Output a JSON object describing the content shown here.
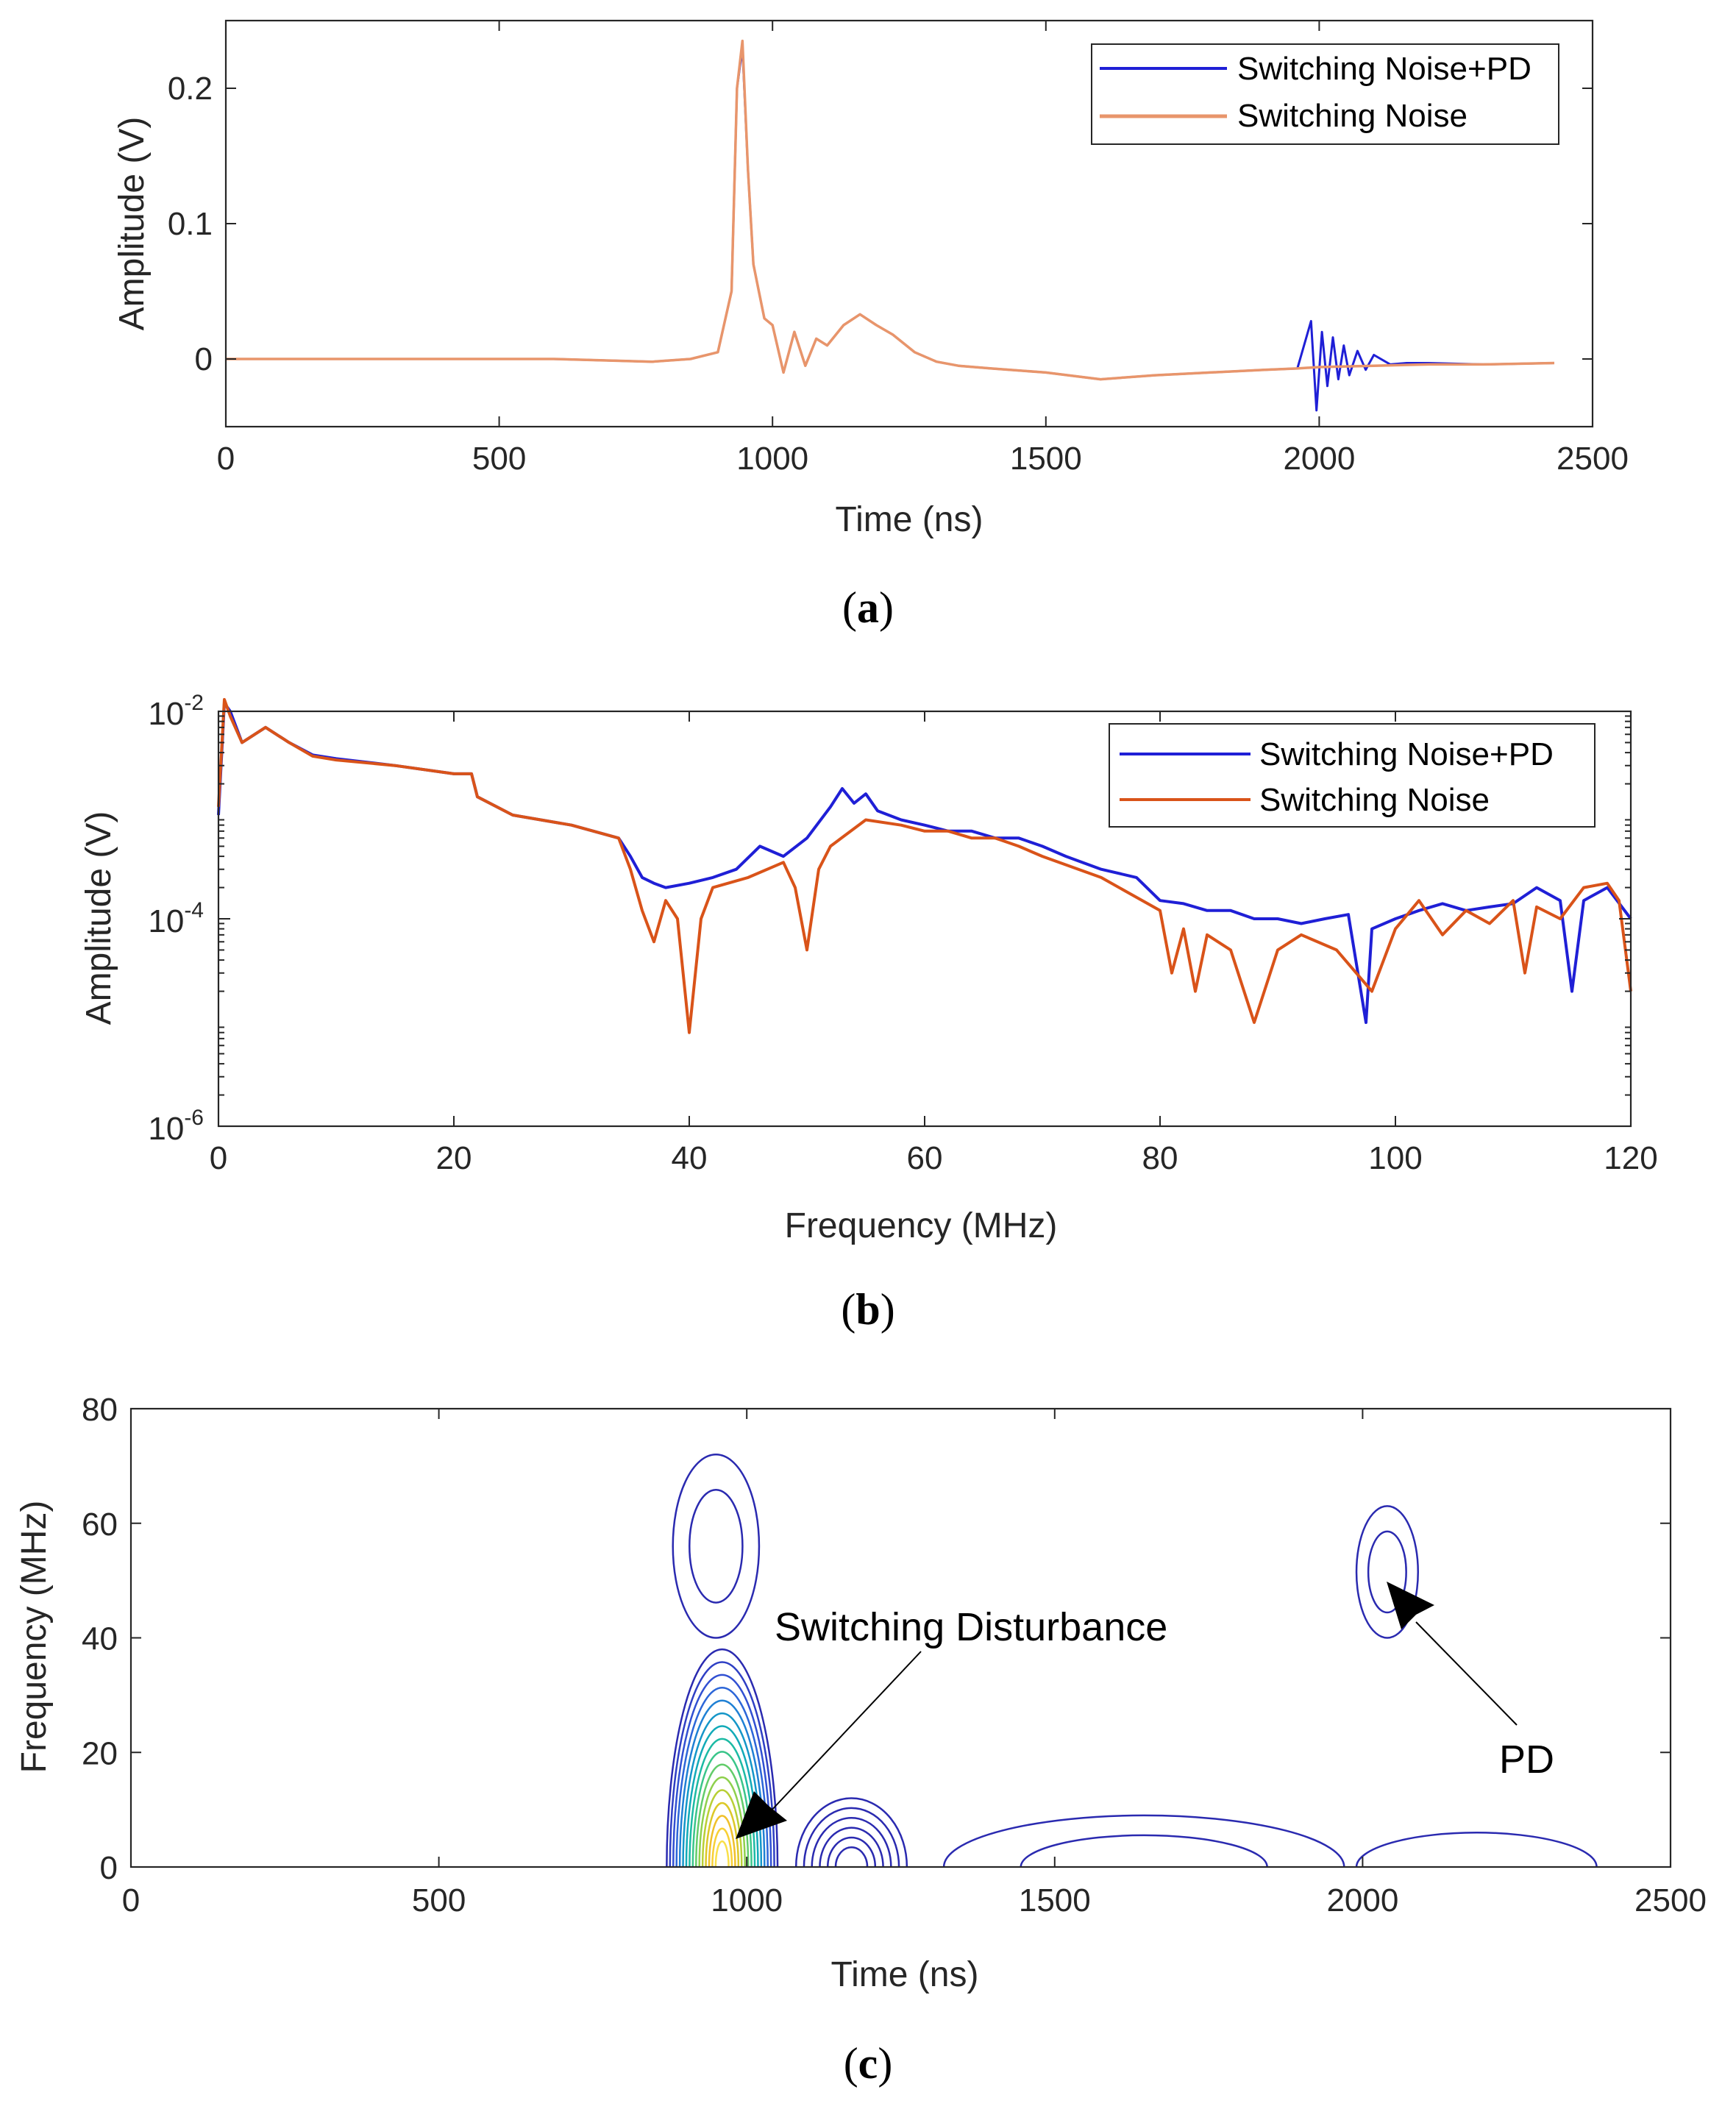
{
  "chart_data": [
    {
      "type": "line",
      "panel": "a",
      "xlabel": "Time (ns)",
      "ylabel": "Amplitude (V)",
      "xlim": [
        0,
        2500
      ],
      "ylim": [
        -0.05,
        0.25
      ],
      "xticks": [
        "0",
        "500",
        "1000",
        "1500",
        "2000",
        "2500"
      ],
      "yticks": [
        "0",
        "0.1",
        "0.2"
      ],
      "legend_position": "top-right",
      "series": [
        {
          "name": "Switching Noise+PD",
          "color": "#1f1fd6",
          "x": [
            0,
            200,
            400,
            600,
            780,
            850,
            900,
            925,
            935,
            945,
            955,
            965,
            975,
            985,
            1000,
            1020,
            1040,
            1060,
            1080,
            1100,
            1130,
            1160,
            1190,
            1220,
            1260,
            1300,
            1340,
            1400,
            1500,
            1600,
            1700,
            1800,
            1900,
            1960,
            1985,
            1995,
            2005,
            2015,
            2025,
            2035,
            2045,
            2055,
            2070,
            2085,
            2100,
            2130,
            2160,
            2200,
            2300,
            2430
          ],
          "y": [
            0,
            0,
            0,
            0,
            -0.002,
            0.0,
            0.005,
            0.05,
            0.2,
            0.23,
            0.14,
            0.07,
            0.05,
            0.03,
            0.025,
            -0.01,
            0.02,
            -0.005,
            0.015,
            0.01,
            0.025,
            0.033,
            0.025,
            0.018,
            0.005,
            -0.002,
            -0.005,
            -0.007,
            -0.01,
            -0.015,
            -0.012,
            -0.01,
            -0.008,
            -0.007,
            0.028,
            -0.038,
            0.02,
            -0.02,
            0.016,
            -0.015,
            0.01,
            -0.012,
            0.006,
            -0.008,
            0.003,
            -0.004,
            -0.003,
            -0.003,
            -0.004,
            -0.003
          ]
        },
        {
          "name": "Switching Noise",
          "color": "#e8956b",
          "x": [
            0,
            200,
            400,
            600,
            780,
            850,
            900,
            925,
            935,
            945,
            955,
            965,
            975,
            985,
            1000,
            1020,
            1040,
            1060,
            1080,
            1100,
            1130,
            1160,
            1190,
            1220,
            1260,
            1300,
            1340,
            1400,
            1500,
            1600,
            1700,
            1800,
            1900,
            1960,
            2000,
            2100,
            2200,
            2300,
            2430
          ],
          "y": [
            0,
            0,
            0,
            0,
            -0.002,
            0.0,
            0.005,
            0.05,
            0.2,
            0.235,
            0.14,
            0.07,
            0.05,
            0.03,
            0.025,
            -0.01,
            0.02,
            -0.005,
            0.015,
            0.01,
            0.025,
            0.033,
            0.025,
            0.018,
            0.005,
            -0.002,
            -0.005,
            -0.007,
            -0.01,
            -0.015,
            -0.012,
            -0.01,
            -0.008,
            -0.007,
            -0.006,
            -0.005,
            -0.004,
            -0.004,
            -0.003
          ]
        }
      ]
    },
    {
      "type": "line",
      "panel": "b",
      "xlabel": "Frequency (MHz)",
      "ylabel": "Amplitude (V)",
      "xlim": [
        0,
        120
      ],
      "ylim": [
        1e-06,
        0.01
      ],
      "yscale": "log",
      "xticks": [
        "0",
        "20",
        "40",
        "60",
        "80",
        "100",
        "120"
      ],
      "legend_position": "top-right",
      "series": [
        {
          "name": "Switching Noise+PD",
          "color": "#1f1fd6",
          "x": [
            0,
            0.5,
            1,
            2,
            4,
            6,
            8,
            10,
            15,
            20,
            21.5,
            22,
            25,
            30,
            34,
            35,
            36,
            37,
            38,
            40,
            42,
            44,
            46,
            48,
            50,
            52,
            53,
            54,
            55,
            56,
            58,
            60,
            62,
            64,
            66,
            68,
            70,
            72,
            75,
            78,
            80,
            82,
            84,
            86,
            88,
            90,
            92,
            94,
            96,
            97.5,
            98,
            100,
            102,
            104,
            106,
            108,
            110,
            112,
            114,
            115,
            116,
            118,
            120
          ],
          "y": [
            0.001,
            0.012,
            0.01,
            0.005,
            0.007,
            0.005,
            0.0038,
            0.0035,
            0.003,
            0.0025,
            0.0025,
            0.0015,
            0.001,
            0.0008,
            0.0006,
            0.0004,
            0.00025,
            0.00022,
            0.0002,
            0.00022,
            0.00025,
            0.0003,
            0.0005,
            0.0004,
            0.0006,
            0.0012,
            0.0018,
            0.0013,
            0.0016,
            0.0011,
            0.0009,
            0.0008,
            0.0007,
            0.0007,
            0.0006,
            0.0006,
            0.0005,
            0.0004,
            0.0003,
            0.00025,
            0.00015,
            0.00014,
            0.00012,
            0.00012,
            0.0001,
            0.0001,
            9e-05,
            0.0001,
            0.00011,
            1e-05,
            8e-05,
            0.0001,
            0.00012,
            0.00014,
            0.00012,
            0.00013,
            0.00014,
            0.0002,
            0.00015,
            2e-05,
            0.00015,
            0.0002,
            0.0001
          ]
        },
        {
          "name": "Switching Noise",
          "color": "#d95319",
          "x": [
            0,
            0.5,
            1,
            2,
            4,
            6,
            8,
            10,
            15,
            20,
            21.5,
            22,
            25,
            30,
            34,
            35,
            36,
            37,
            38,
            39,
            40,
            41,
            42,
            45,
            48,
            49,
            50,
            51,
            52,
            55,
            58,
            60,
            62,
            64,
            66,
            68,
            70,
            75,
            80,
            81,
            82,
            83,
            84,
            86,
            88,
            90,
            92,
            95,
            98,
            100,
            102,
            104,
            106,
            108,
            110,
            111,
            112,
            114,
            116,
            118,
            119,
            120
          ],
          "y": [
            0.0012,
            0.013,
            0.009,
            0.005,
            0.007,
            0.005,
            0.0037,
            0.0034,
            0.003,
            0.0025,
            0.0025,
            0.0015,
            0.001,
            0.0008,
            0.0006,
            0.0003,
            0.00012,
            6e-05,
            0.00015,
            0.0001,
            8e-06,
            0.0001,
            0.0002,
            0.00025,
            0.00035,
            0.0002,
            5e-05,
            0.0003,
            0.0005,
            0.0009,
            0.0008,
            0.0007,
            0.0007,
            0.0006,
            0.0006,
            0.0005,
            0.0004,
            0.00025,
            0.00012,
            3e-05,
            8e-05,
            2e-05,
            7e-05,
            5e-05,
            1e-05,
            5e-05,
            7e-05,
            5e-05,
            2e-05,
            8e-05,
            0.00015,
            7e-05,
            0.00012,
            9e-05,
            0.00015,
            3e-05,
            0.00013,
            0.0001,
            0.0002,
            0.00022,
            0.00015,
            2e-05
          ]
        }
      ]
    },
    {
      "type": "contour",
      "panel": "c",
      "xlabel": "Time (ns)",
      "ylabel": "Frequency (MHz)",
      "xlim": [
        0,
        2500
      ],
      "ylim": [
        0,
        80
      ],
      "xticks": [
        "0",
        "500",
        "1000",
        "1500",
        "2000",
        "2500"
      ],
      "yticks": [
        "0",
        "20",
        "40",
        "60",
        "80"
      ],
      "annotations": [
        {
          "text": "Switching Disturbance",
          "arrow_to": [
            950,
            5
          ]
        },
        {
          "text": "PD",
          "arrow_to": [
            2030,
            50
          ]
        }
      ],
      "contour_regions": [
        {
          "label": "switching-main",
          "t_range": [
            870,
            1050
          ],
          "f_range": [
            0,
            38
          ],
          "levels": 16
        },
        {
          "label": "switching-upper",
          "t_range": [
            880,
            1020
          ],
          "f_range": [
            40,
            72
          ],
          "levels": 2
        },
        {
          "label": "ringing-1150",
          "t_range": [
            1080,
            1260
          ],
          "f_range": [
            0,
            12
          ],
          "levels": 6
        },
        {
          "label": "tail-1",
          "t_range": [
            1320,
            1970
          ],
          "f_range": [
            0,
            9
          ],
          "levels": 2
        },
        {
          "label": "tail-2",
          "t_range": [
            1990,
            2380
          ],
          "f_range": [
            0,
            6
          ],
          "levels": 1
        },
        {
          "label": "pd",
          "t_range": [
            1990,
            2090
          ],
          "f_range": [
            40,
            63
          ],
          "levels": 2
        }
      ]
    }
  ],
  "captions": {
    "a": "(a)",
    "b": "(b)",
    "c": "(c)"
  },
  "colors": {
    "blue": "#1f1fd6",
    "orange_light": "#e8956b",
    "orange": "#d95319"
  }
}
